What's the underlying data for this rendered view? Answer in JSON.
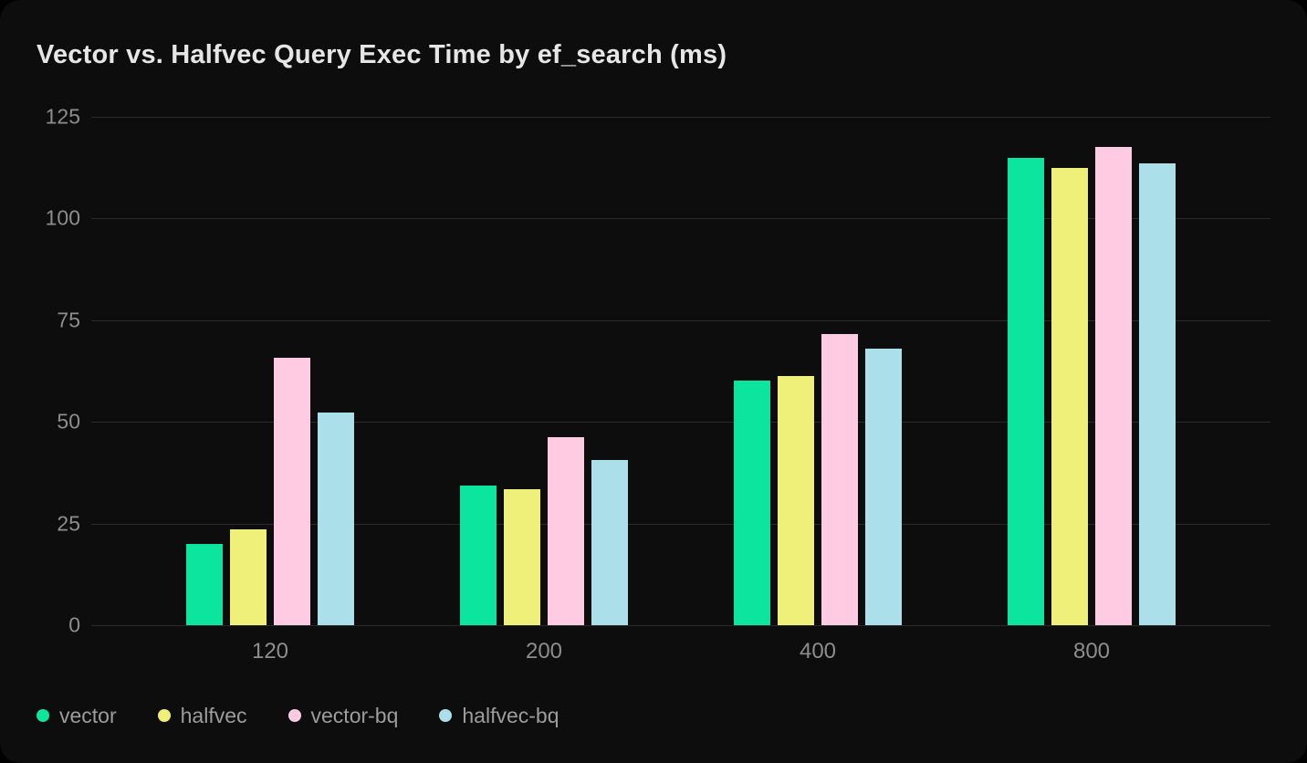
{
  "chart_data": {
    "type": "bar",
    "title": "Vector vs. Halfvec Query Exec Time by ef_search (ms)",
    "xlabel": "",
    "ylabel": "",
    "categories": [
      "120",
      "200",
      "400",
      "800"
    ],
    "yticks": [
      0,
      25,
      50,
      75,
      100,
      125
    ],
    "ylim": [
      0,
      125
    ],
    "grid": true,
    "legend_position": "bottom-left",
    "series": [
      {
        "name": "vector",
        "color": "#0ce59e",
        "values": [
          20.0,
          34.3,
          60.2,
          115.0
        ]
      },
      {
        "name": "halfvec",
        "color": "#eef07a",
        "values": [
          23.5,
          33.4,
          61.2,
          112.4
        ]
      },
      {
        "name": "vector-bq",
        "color": "#fecbe3",
        "values": [
          65.8,
          46.3,
          71.5,
          117.5
        ]
      },
      {
        "name": "halfvec-bq",
        "color": "#abe0ea",
        "values": [
          52.3,
          40.6,
          68.0,
          113.6
        ]
      }
    ]
  },
  "theme": {
    "card_background": "#0d0d0d",
    "page_background": "#000000",
    "gridline_color": "#2a2a2a",
    "axis_text_color": "#8d8d8d",
    "legend_text_color": "#9c9c9c",
    "title_color": "#e6e6e6"
  }
}
